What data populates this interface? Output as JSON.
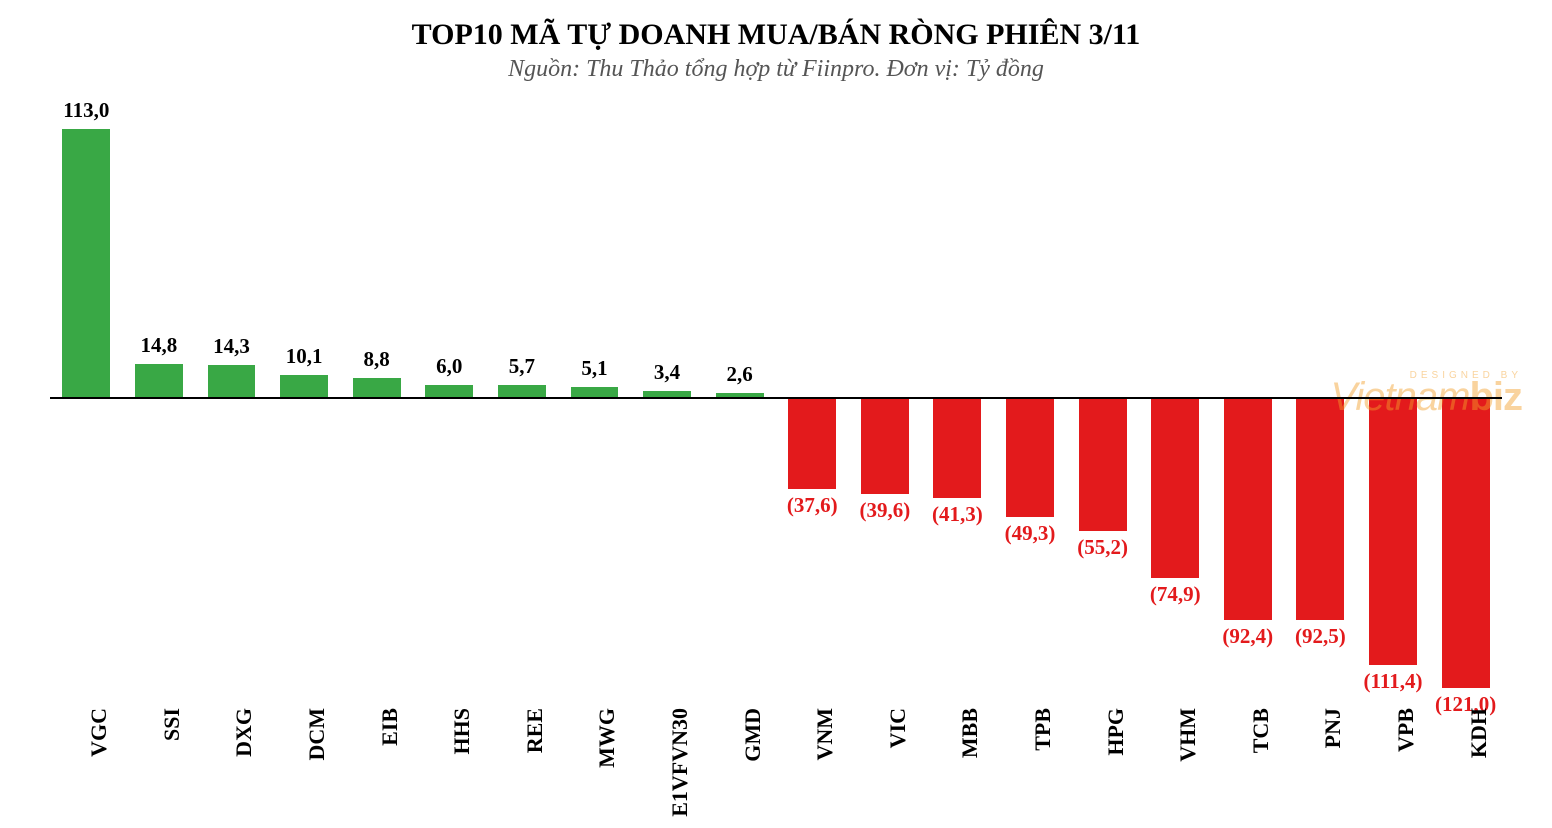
{
  "chart": {
    "type": "bar",
    "title": "TOP10 MÃ TỰ DOANH MUA/BÁN RÒNG PHIÊN 3/11",
    "subtitle": "Nguồn: Thu Thảo tổng hợp từ Fiinpro. Đơn vị: Tỷ đồng",
    "background_color": "#ffffff",
    "baseline_color": "#000000",
    "positive_color": "#39a845",
    "negative_color": "#e31a1c",
    "title_fontsize": 30,
    "subtitle_fontsize": 24,
    "label_fontsize": 21,
    "xlabel_fontsize": 22,
    "xlabel_rotation_deg": -90,
    "bar_width": 0.66,
    "y_min": -125,
    "y_max": 125,
    "categories": [
      "VGC",
      "SSI",
      "DXG",
      "DCM",
      "EIB",
      "HHS",
      "REE",
      "MWG",
      "E1VFVN30",
      "GMD",
      "VNM",
      "VIC",
      "MBB",
      "TPB",
      "HPG",
      "VHM",
      "TCB",
      "PNJ",
      "VPB",
      "KDH"
    ],
    "values": [
      113.0,
      14.8,
      14.3,
      10.1,
      8.8,
      6.0,
      5.7,
      5.1,
      3.4,
      2.6,
      -37.6,
      -39.6,
      -41.3,
      -49.3,
      -55.2,
      -74.9,
      -92.4,
      -92.5,
      -111.4,
      -121.0
    ],
    "display_labels": [
      "113,0",
      "14,8",
      "14,3",
      "10,1",
      "8,8",
      "6,0",
      "5,7",
      "5,1",
      "3,4",
      "2,6",
      "(37,6)",
      "(39,6)",
      "(41,3)",
      "(49,3)",
      "(55,2)",
      "(74,9)",
      "(92,4)",
      "(92,5)",
      "(111,4)",
      "(121,0)"
    ]
  },
  "watermark": {
    "designed_by": "DESIGNED BY",
    "brand_prefix": "Vietnam",
    "brand_suffix": "biz",
    "color": "#f3a02a"
  }
}
